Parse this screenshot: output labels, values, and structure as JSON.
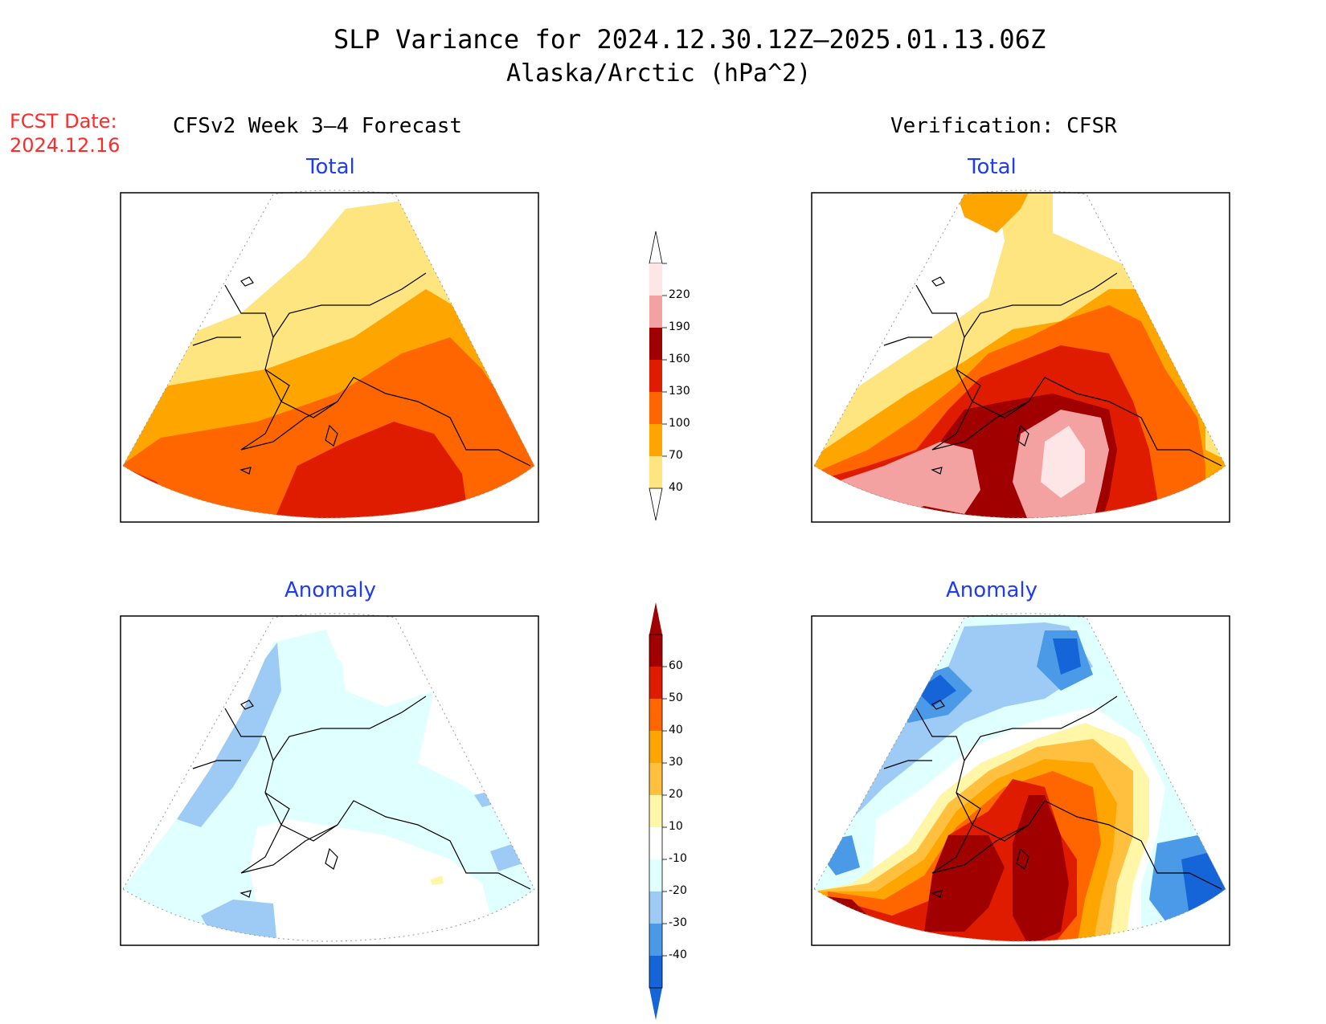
{
  "title": "SLP Variance for 2024.12.30.12Z—2025.01.13.06Z",
  "subtitle": "Alaska/Arctic (hPa^2)",
  "fcst_date_label": "FCST Date:",
  "fcst_date_value": "2024.12.16",
  "left_header": "CFSv2 Week 3—4 Forecast",
  "right_header": "Verification: CFSR",
  "panels": {
    "top_left_title": "Total",
    "top_right_title": "Total",
    "bottom_left_title": "Anomaly",
    "bottom_right_title": "Anomaly"
  },
  "colorbar_total": {
    "labels": [
      "220",
      "190",
      "160",
      "130",
      "100",
      "70",
      "40"
    ],
    "colors": [
      "#ffe6e6",
      "#f3a1a1",
      "#a00000",
      "#e01c00",
      "#ff6600",
      "#ffa500",
      "#ffe57f"
    ]
  },
  "colorbar_anomaly": {
    "labels": [
      "60",
      "50",
      "40",
      "30",
      "20",
      "10",
      "-10",
      "-20",
      "-30",
      "-40"
    ],
    "colors": [
      "#a00000",
      "#e01c00",
      "#ff6600",
      "#ffa500",
      "#ffc040",
      "#fff6a8",
      "#ffffff",
      "#e0ffff",
      "#9ecbf5",
      "#4a9ae8",
      "#1565d8"
    ]
  },
  "colors": {
    "map_border": "#000000",
    "coastline": "#000000",
    "graticule": "#999999"
  }
}
